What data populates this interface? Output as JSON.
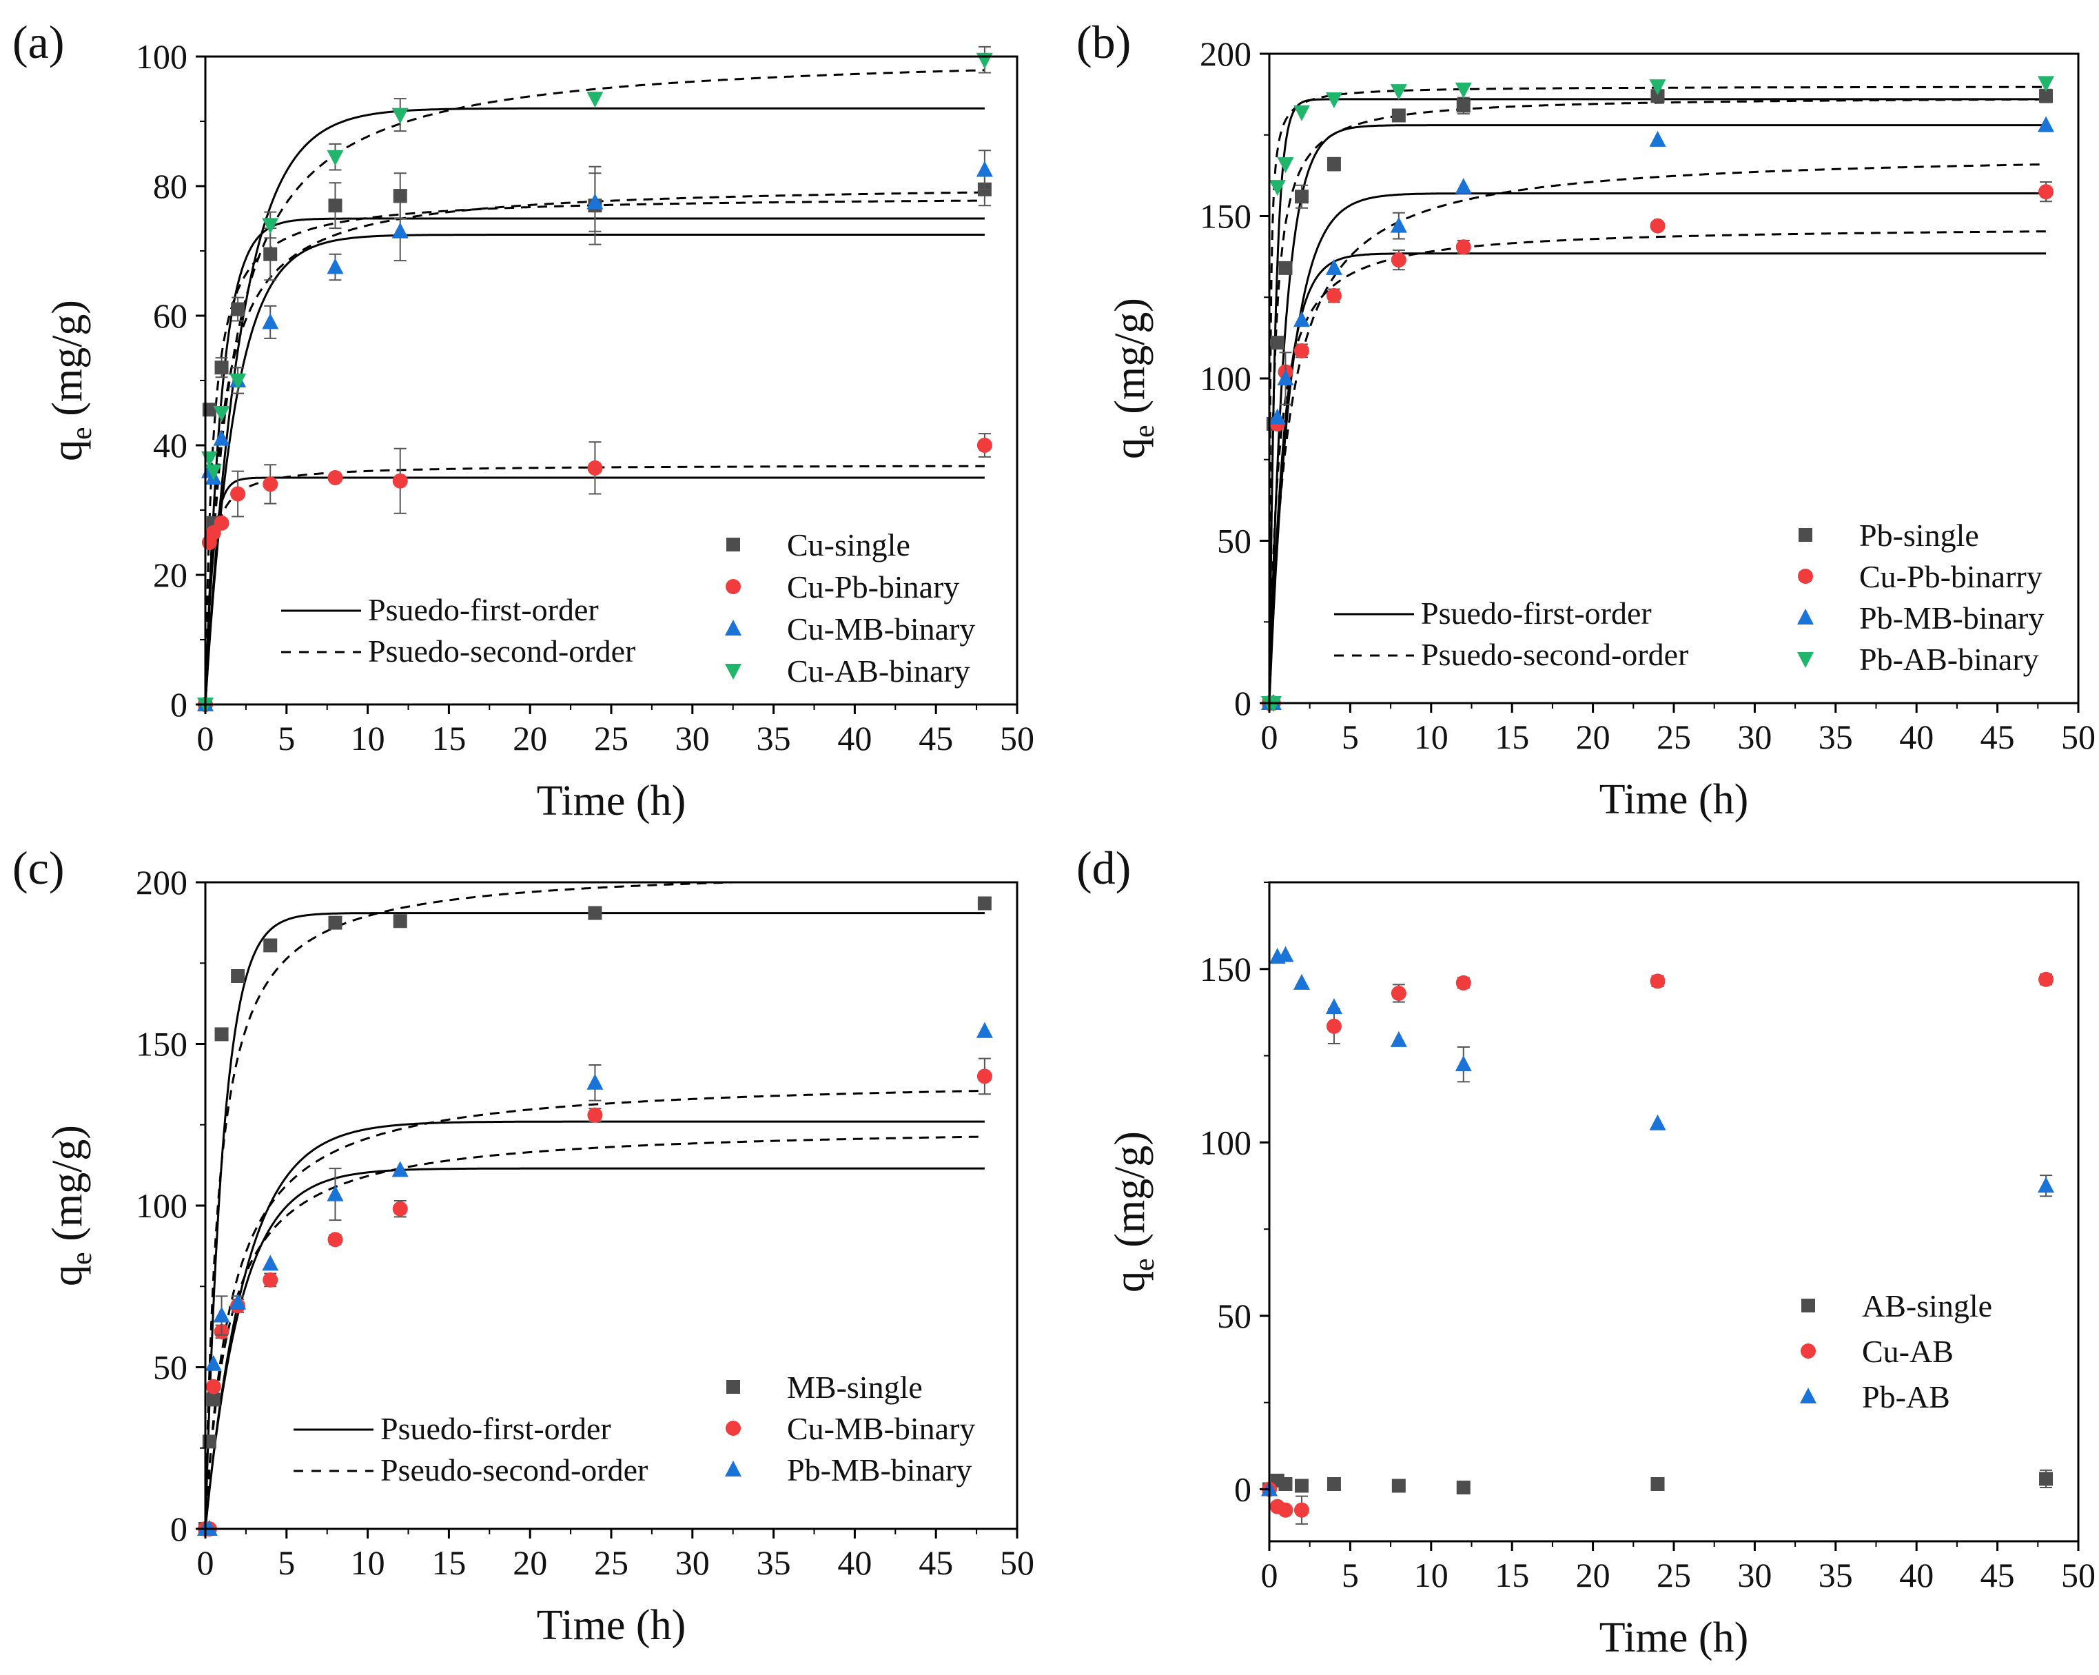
{
  "colors": {
    "gray": "#4d4d4d",
    "red": "#f03c3c",
    "blue": "#1a73d6",
    "green": "#1fb56a",
    "axis": "#000000"
  },
  "icons": {
    "square": "square-marker-icon",
    "circle": "circle-marker-icon",
    "triangle": "triangle-up-marker-icon",
    "tri_down": "triangle-down-marker-icon"
  },
  "chart_data": [
    {
      "panel_label": "(a)",
      "type": "scatter",
      "xlabel": "Time (h)",
      "ylabel_main": "q",
      "ylabel_sub": "e",
      "ylabel_unit": " (mg/g)",
      "xlim": [
        0,
        50
      ],
      "ylim": [
        0,
        100
      ],
      "xticks": [
        0,
        5,
        10,
        15,
        20,
        25,
        30,
        35,
        40,
        45,
        50
      ],
      "yticks": [
        0,
        20,
        40,
        60,
        80,
        100
      ],
      "legend_position": "bottom-right",
      "fit_legend_position": "bottom-left",
      "fit_legend": [
        "Psuedo-first-order",
        "Psuedo-second-order"
      ],
      "series": [
        {
          "name": "Cu-single",
          "marker": "square",
          "color": "gray",
          "x": [
            0,
            0.25,
            0.5,
            1,
            2,
            4,
            8,
            12,
            24,
            48
          ],
          "y": [
            0,
            45.5,
            28,
            52,
            61,
            69.5,
            77,
            78.5,
            77,
            79.5
          ],
          "err": [
            0,
            0,
            0,
            1.5,
            1.8,
            4,
            3.5,
            3.5,
            6,
            2.5
          ]
        },
        {
          "name": "Cu-Pb-binary",
          "marker": "circle",
          "color": "red",
          "x": [
            0,
            0.25,
            0.5,
            1,
            2,
            4,
            8,
            12,
            24,
            48
          ],
          "y": [
            0,
            25,
            26.5,
            28,
            32.5,
            34,
            35,
            34.5,
            36.5,
            40
          ],
          "err": [
            0,
            0,
            0,
            0,
            3.5,
            3,
            0,
            5,
            4,
            1.8
          ]
        },
        {
          "name": "Cu-MB-binary",
          "marker": "triangle",
          "color": "blue",
          "x": [
            0,
            0.25,
            0.5,
            1,
            2,
            4,
            8,
            12,
            24,
            48
          ],
          "y": [
            0,
            36,
            35,
            41,
            50,
            59,
            67.5,
            73,
            77.5,
            82.5
          ],
          "err": [
            0,
            0,
            0,
            0,
            2,
            2.5,
            2,
            4.5,
            4.5,
            3
          ]
        },
        {
          "name": "Cu-AB-binary",
          "marker": "tri_down",
          "color": "green",
          "x": [
            0,
            0.25,
            0.5,
            1,
            2,
            4,
            8,
            12,
            24,
            48
          ],
          "y": [
            0,
            38,
            36,
            45,
            50,
            74,
            84.5,
            91,
            93.5,
            99.5
          ],
          "err": [
            0,
            0,
            0,
            0,
            2,
            2,
            2,
            2.5,
            0,
            2
          ]
        }
      ],
      "fits": [
        {
          "kind": "pfo",
          "qe": 35,
          "k": 2.2
        },
        {
          "kind": "pso",
          "qe": 37,
          "k": 0.1
        },
        {
          "kind": "pfo",
          "qe": 72.5,
          "k": 0.55
        },
        {
          "kind": "pso",
          "qe": 80.5,
          "k": 0.014
        },
        {
          "kind": "pfo",
          "qe": 75,
          "k": 1.0
        },
        {
          "kind": "pso",
          "qe": 78.5,
          "k": 0.028
        },
        {
          "kind": "pfo",
          "qe": 92,
          "k": 0.45
        },
        {
          "kind": "pso",
          "qe": 101,
          "k": 0.0065
        }
      ]
    },
    {
      "panel_label": "(b)",
      "type": "scatter",
      "xlabel": "Time (h)",
      "ylabel_main": "q",
      "ylabel_sub": "e",
      "ylabel_unit": " (mg/g)",
      "xlim": [
        0,
        50
      ],
      "ylim": [
        0,
        200
      ],
      "xticks": [
        0,
        5,
        10,
        15,
        20,
        25,
        30,
        35,
        40,
        45,
        50
      ],
      "yticks": [
        0,
        50,
        100,
        150,
        200
      ],
      "legend_position": "bottom-right",
      "fit_legend_position": "bottom-left",
      "fit_legend": [
        "Psuedo-first-order",
        "Psuedo-second-order"
      ],
      "series": [
        {
          "name": "Pb-single",
          "marker": "square",
          "color": "gray",
          "x": [
            0,
            0.25,
            0.5,
            1,
            2,
            4,
            8,
            12,
            24,
            48
          ],
          "y": [
            0,
            86,
            111,
            134,
            156,
            166,
            181,
            184,
            187,
            187
          ],
          "err": [
            0,
            0,
            0,
            0,
            3.5,
            2,
            0,
            2.5,
            0,
            2
          ]
        },
        {
          "name": "Cu-Pb-binarry",
          "marker": "circle",
          "color": "red",
          "x": [
            0,
            0.25,
            0.5,
            1,
            2,
            4,
            8,
            12,
            24,
            48
          ],
          "y": [
            0,
            0,
            86,
            102,
            108.5,
            125.5,
            136.5,
            140.5,
            147,
            157.5
          ],
          "err": [
            0,
            0,
            0,
            0,
            2,
            2,
            3,
            2,
            0,
            3
          ]
        },
        {
          "name": "Pb-MB-binary",
          "marker": "triangle",
          "color": "blue",
          "x": [
            0,
            0.25,
            0.5,
            1,
            2,
            4,
            8,
            12,
            24,
            48
          ],
          "y": [
            0,
            0,
            88,
            100,
            118,
            134,
            147,
            159,
            173.5,
            178
          ],
          "err": [
            0,
            0,
            0,
            8,
            0,
            0,
            4,
            0,
            0,
            0
          ]
        },
        {
          "name": "Pb-AB-binary",
          "marker": "tri_down",
          "color": "green",
          "x": [
            0,
            0.25,
            0.5,
            1,
            2,
            4,
            8,
            12,
            24,
            48
          ],
          "y": [
            0,
            0,
            159,
            166,
            182,
            186,
            188.5,
            189,
            190,
            191
          ],
          "err": [
            0,
            0,
            0,
            0,
            0,
            0,
            0,
            0,
            0,
            0
          ]
        }
      ],
      "fits": [
        {
          "kind": "pfo",
          "qe": 138.5,
          "k": 1.0
        },
        {
          "kind": "pso",
          "qe": 147,
          "k": 0.012
        },
        {
          "kind": "pfo",
          "qe": 157,
          "k": 0.75
        },
        {
          "kind": "pso",
          "qe": 170,
          "k": 0.005
        },
        {
          "kind": "pfo",
          "qe": 178,
          "k": 1.05
        },
        {
          "kind": "pso",
          "qe": 187,
          "k": 0.02
        },
        {
          "kind": "pfo",
          "qe": 186,
          "k": 2.6
        },
        {
          "kind": "pso",
          "qe": 190,
          "k": 0.09
        }
      ]
    },
    {
      "panel_label": "(c)",
      "type": "scatter",
      "xlabel": "Time (h)",
      "ylabel_main": "q",
      "ylabel_sub": "e",
      "ylabel_unit": " (mg/g)",
      "xlim": [
        0,
        50
      ],
      "ylim": [
        0,
        200
      ],
      "xticks": [
        0,
        5,
        10,
        15,
        20,
        25,
        30,
        35,
        40,
        45,
        50
      ],
      "yticks": [
        0,
        50,
        100,
        150,
        200
      ],
      "legend_position": "bottom-right",
      "fit_legend_position": "bottom-left",
      "fit_legend": [
        "Psuedo-first-order",
        "Pseudo-second-order"
      ],
      "series": [
        {
          "name": "MB-single",
          "marker": "square",
          "color": "gray",
          "x": [
            0,
            0.25,
            0.5,
            1,
            2,
            4,
            8,
            12,
            24,
            48
          ],
          "y": [
            0,
            27,
            40,
            153,
            171,
            180.5,
            187.5,
            188,
            190.5,
            193.5
          ],
          "err": [
            0,
            0,
            0,
            1.5,
            1.5,
            1.5,
            1.5,
            1.5,
            1.5,
            1.5
          ]
        },
        {
          "name": "Cu-MB-binary",
          "marker": "circle",
          "color": "red",
          "x": [
            0,
            0.25,
            0.5,
            1,
            2,
            4,
            8,
            12,
            24,
            48
          ],
          "y": [
            0,
            0,
            44,
            61,
            69,
            77,
            89.5,
            99,
            128,
            140
          ],
          "err": [
            0,
            0,
            0,
            2,
            2,
            2,
            1.5,
            2.5,
            2,
            5.5
          ]
        },
        {
          "name": "Pb-MB-binary",
          "marker": "triangle",
          "color": "blue",
          "x": [
            0,
            0.25,
            0.5,
            1,
            2,
            4,
            8,
            12,
            24,
            48
          ],
          "y": [
            0,
            0,
            51,
            66,
            70,
            82,
            103.5,
            111,
            138,
            154
          ],
          "err": [
            0,
            0,
            0,
            6,
            2,
            0,
            8,
            0,
            5.5,
            0
          ]
        }
      ],
      "fits": [
        {
          "kind": "pfo",
          "qe": 190.5,
          "k": 0.9
        },
        {
          "kind": "pso",
          "qe": 205,
          "k": 0.006
        },
        {
          "kind": "pfo",
          "qe": 111.5,
          "k": 0.45
        },
        {
          "kind": "pso",
          "qe": 125,
          "k": 0.0055
        },
        {
          "kind": "pfo",
          "qe": 126,
          "k": 0.4
        },
        {
          "kind": "pso",
          "qe": 140,
          "k": 0.0045
        }
      ]
    },
    {
      "panel_label": "(d)",
      "type": "scatter",
      "xlabel": "Time (h)",
      "ylabel_main": "q",
      "ylabel_sub": "e",
      "ylabel_unit": " (mg/g)",
      "xlim": [
        0,
        50
      ],
      "ylim": [
        -15,
        175
      ],
      "xticks": [
        0,
        5,
        10,
        15,
        20,
        25,
        30,
        35,
        40,
        45,
        50
      ],
      "yticks": [
        0,
        50,
        100,
        150
      ],
      "legend_position": "middle-right",
      "fit_legend": [],
      "series": [
        {
          "name": "AB-single",
          "marker": "square",
          "color": "gray",
          "x": [
            0,
            0.5,
            1,
            2,
            4,
            8,
            12,
            24,
            48
          ],
          "y": [
            0,
            2.5,
            1.5,
            1,
            1.5,
            1,
            0.5,
            1.5,
            3
          ],
          "err": [
            0,
            0,
            0,
            0,
            0,
            0,
            0,
            0,
            2.5
          ]
        },
        {
          "name": "Cu-AB",
          "marker": "circle",
          "color": "red",
          "x": [
            0,
            0.5,
            1,
            2,
            4,
            8,
            12,
            24,
            48
          ],
          "y": [
            0,
            -5,
            -6,
            -6,
            133.5,
            143,
            146,
            146.5,
            147
          ],
          "err": [
            0,
            0,
            0,
            4,
            5,
            2.5,
            1.5,
            1.5,
            1.5
          ]
        },
        {
          "name": "Pb-AB",
          "marker": "triangle",
          "color": "blue",
          "x": [
            0,
            0.5,
            1,
            2,
            4,
            8,
            12,
            24,
            48
          ],
          "y": [
            0,
            153.5,
            154,
            146,
            139,
            129.5,
            122.5,
            105.5,
            87.5
          ],
          "err": [
            0,
            0,
            0,
            0,
            0,
            0,
            5,
            0,
            3
          ]
        }
      ],
      "fits": []
    }
  ]
}
